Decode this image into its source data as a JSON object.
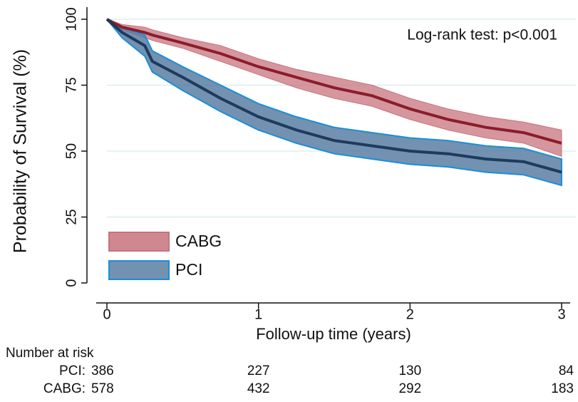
{
  "chart_data": {
    "type": "line",
    "ylabel": "Probability of Survival (%)",
    "xlabel": "Follow-up time (years)",
    "annotation": "Log-rank test: p<0.001",
    "x": [
      0,
      0.1,
      0.25,
      0.3,
      0.5,
      0.75,
      1,
      1.25,
      1.5,
      1.75,
      2,
      2.25,
      2.5,
      2.75,
      3
    ],
    "series": [
      {
        "name": "CABG",
        "color": "#8b1c2c",
        "band_color": "#c8737d",
        "values": [
          100,
          97,
          95,
          94,
          91,
          87,
          82,
          78,
          74,
          71,
          66,
          62,
          59,
          57,
          53
        ],
        "lower": [
          100,
          96,
          93,
          92,
          89,
          84,
          79,
          74,
          70,
          67,
          62,
          58,
          55,
          53,
          48
        ],
        "upper": [
          100,
          98,
          97,
          96,
          93,
          90,
          85,
          81,
          78,
          75,
          70,
          66,
          63,
          61,
          58
        ]
      },
      {
        "name": "PCI",
        "color": "#1e3a5c",
        "band_color": "#5a7ea3",
        "edge_color": "#1a8fd8",
        "values": [
          100,
          95,
          90,
          84,
          78,
          70,
          63,
          58,
          54,
          52,
          50,
          49,
          47,
          46,
          42
        ],
        "lower": [
          100,
          93,
          86,
          80,
          73,
          65,
          58,
          53,
          49,
          47,
          45,
          44,
          42,
          41,
          37
        ],
        "upper": [
          100,
          97,
          94,
          88,
          82,
          75,
          68,
          63,
          59,
          57,
          55,
          54,
          52,
          51,
          47
        ]
      }
    ],
    "xlim": [
      0,
      3
    ],
    "xticks": [
      0,
      1,
      2,
      3
    ],
    "ylim": [
      0,
      100
    ],
    "yticks": [
      0,
      25,
      50,
      75,
      100
    ],
    "grid": true,
    "legend": "lower left",
    "risk_table": {
      "title": "Number at risk",
      "rows": [
        {
          "label": "PCI:",
          "values": [
            386,
            227,
            130,
            84
          ]
        },
        {
          "label": "CABG:",
          "values": [
            578,
            432,
            292,
            183
          ]
        }
      ]
    }
  }
}
